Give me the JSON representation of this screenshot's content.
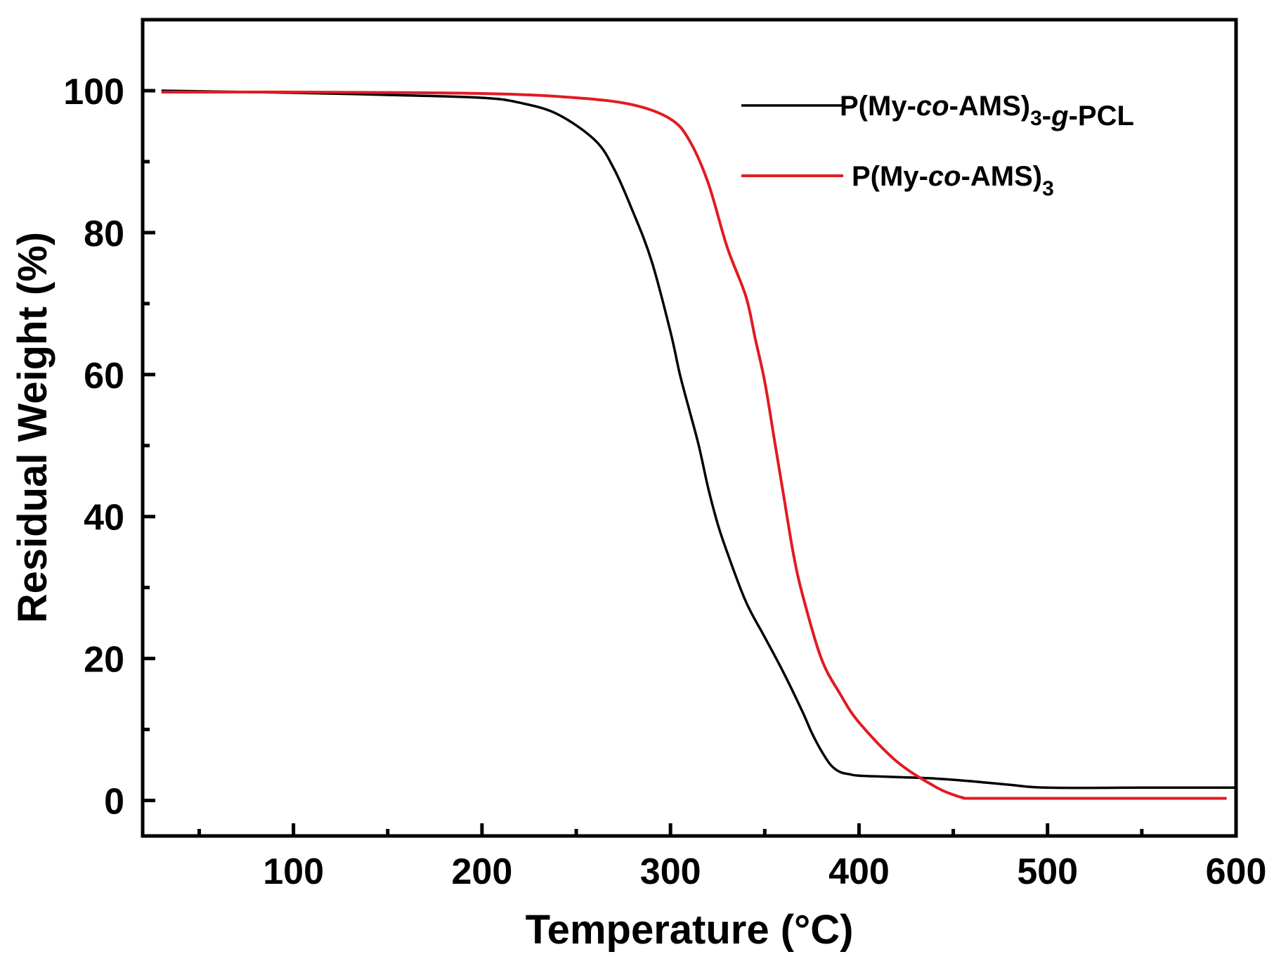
{
  "chart_data": {
    "type": "line",
    "title": "",
    "xlabel": "Temperature (°C)",
    "ylabel": "Residual Weight (%)",
    "xlim": [
      20,
      600
    ],
    "ylim": [
      -5,
      110
    ],
    "x_ticks": [
      100,
      200,
      300,
      400,
      500,
      600
    ],
    "y_ticks": [
      0,
      20,
      40,
      60,
      80,
      100
    ],
    "grid": false,
    "legend_position": "top-right",
    "series": [
      {
        "name": "P(My-co-AMS)3-g-PCL",
        "legend_parts": [
          {
            "t": "P(My-",
            "style": "normal"
          },
          {
            "t": "co",
            "style": "italic"
          },
          {
            "t": "-AMS)",
            "style": "normal"
          },
          {
            "t": "3",
            "style": "sub"
          },
          {
            "t": "-",
            "style": "normal"
          },
          {
            "t": "g",
            "style": "italic"
          },
          {
            "t": "-PCL",
            "style": "normal"
          }
        ],
        "color": "#000000",
        "x": [
          30,
          100,
          150,
          200,
          220,
          240,
          260,
          270,
          280,
          290,
          300,
          305,
          310,
          315,
          320,
          325,
          330,
          340,
          350,
          360,
          370,
          375,
          380,
          385,
          390,
          395,
          400,
          420,
          440,
          460,
          480,
          500,
          550,
          600
        ],
        "y": [
          100,
          99.7,
          99.4,
          99.0,
          98.3,
          96.7,
          93.0,
          89.0,
          83.0,
          76.0,
          66.0,
          60.0,
          55.0,
          50.0,
          44.0,
          39.0,
          35.0,
          28.0,
          23.0,
          18.0,
          12.5,
          9.5,
          7.0,
          5.0,
          4.0,
          3.7,
          3.5,
          3.3,
          3.1,
          2.7,
          2.2,
          1.8,
          1.8,
          1.8
        ]
      },
      {
        "name": "P(My-co-AMS)3",
        "legend_parts": [
          {
            "t": "P(My-",
            "style": "normal"
          },
          {
            "t": "co",
            "style": "italic"
          },
          {
            "t": "-AMS)",
            "style": "normal"
          },
          {
            "t": "3",
            "style": "sub"
          }
        ],
        "color": "#e11b22",
        "x": [
          30,
          100,
          200,
          250,
          280,
          300,
          310,
          320,
          330,
          340,
          345,
          350,
          355,
          360,
          365,
          370,
          380,
          390,
          400,
          420,
          440,
          450,
          455,
          460,
          500,
          550,
          595
        ],
        "y": [
          99.8,
          99.8,
          99.6,
          99.0,
          98.0,
          96.0,
          93.0,
          87.0,
          78.0,
          71.0,
          65.0,
          59.0,
          51.0,
          43.0,
          35.0,
          29.0,
          20.0,
          15.0,
          11.0,
          5.5,
          2.0,
          0.8,
          0.4,
          0.3,
          0.3,
          0.3,
          0.3
        ]
      }
    ]
  }
}
